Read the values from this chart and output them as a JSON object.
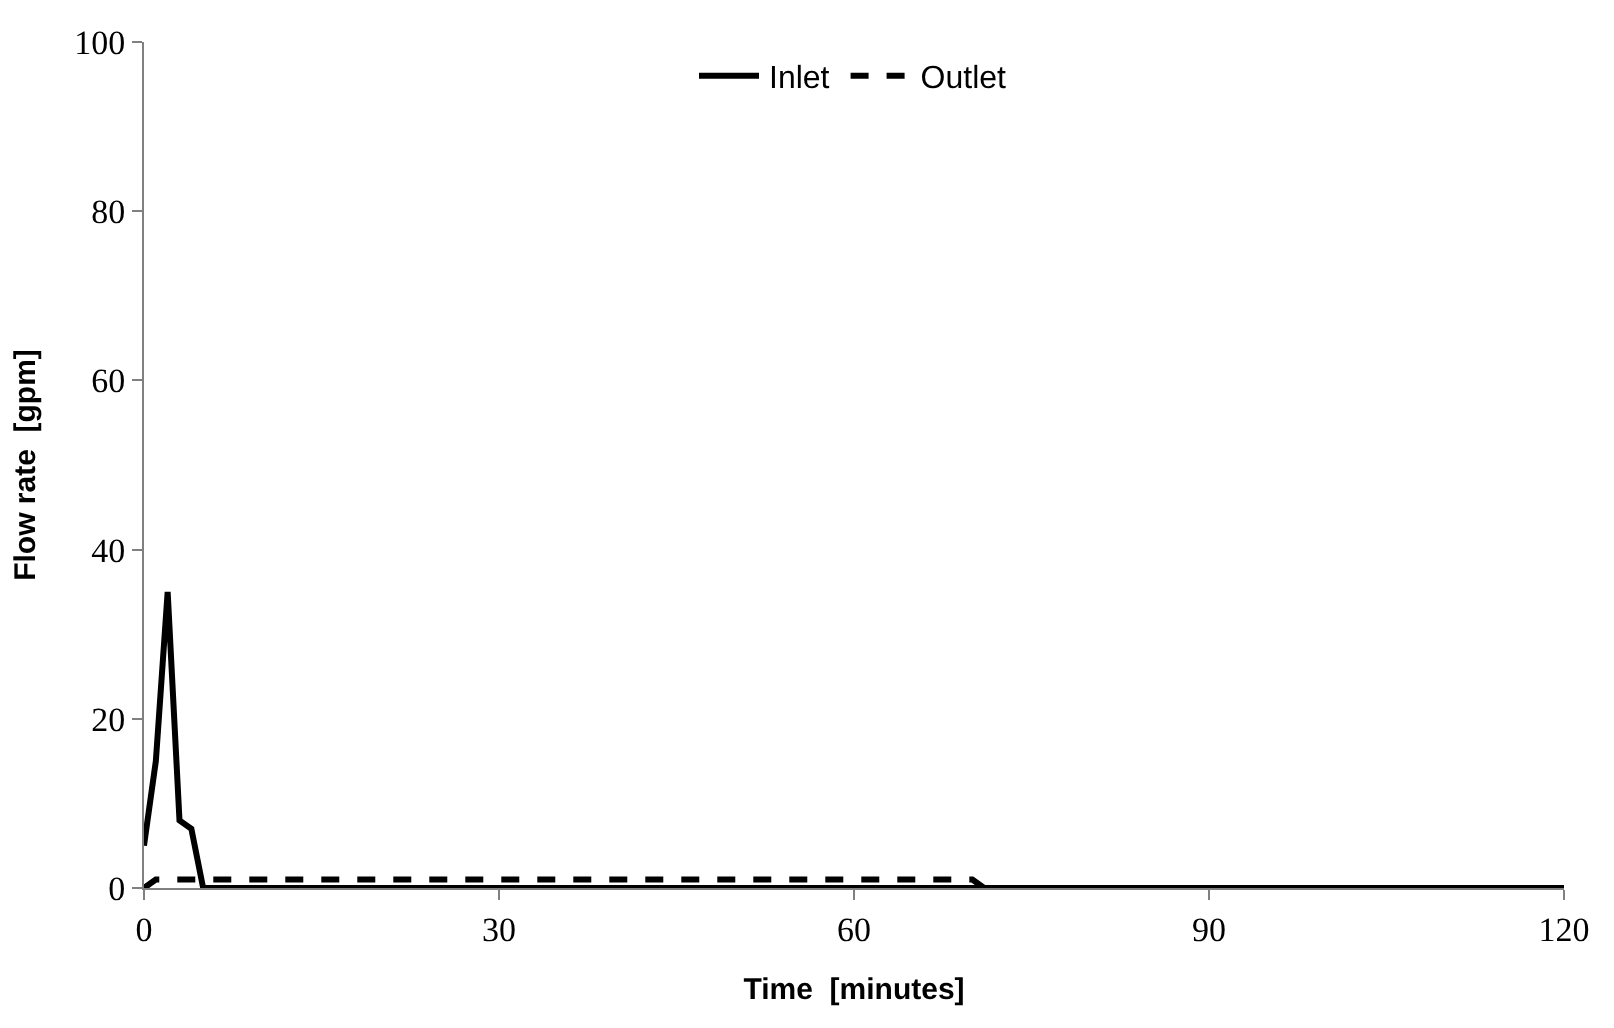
{
  "chart_data": {
    "type": "line",
    "xlabel": "Time  [minutes]",
    "ylabel": "Flow rate  [gpm]",
    "xlim": [
      0,
      120
    ],
    "xticks": [
      0,
      30,
      60,
      90,
      120
    ],
    "ylim": [
      0,
      100
    ],
    "yticks": [
      0,
      20,
      40,
      60,
      80,
      100
    ],
    "legend": "top",
    "marker": "none",
    "series": [
      {
        "name": "Inlet",
        "color": "#000000",
        "line_style": "solid",
        "x": [
          0,
          1,
          2,
          3,
          4,
          5,
          10,
          30,
          60,
          90,
          120
        ],
        "values": [
          5,
          15,
          35,
          8,
          7,
          0,
          0,
          0,
          0,
          0,
          0
        ]
      },
      {
        "name": "Outlet",
        "color": "#000000",
        "line_style": "dashed",
        "x": [
          0,
          1,
          2,
          5,
          10,
          20,
          30,
          40,
          50,
          60,
          70,
          71
        ],
        "values": [
          0,
          1,
          1,
          1,
          1,
          1,
          1,
          1,
          1,
          1,
          1,
          0
        ]
      }
    ]
  }
}
